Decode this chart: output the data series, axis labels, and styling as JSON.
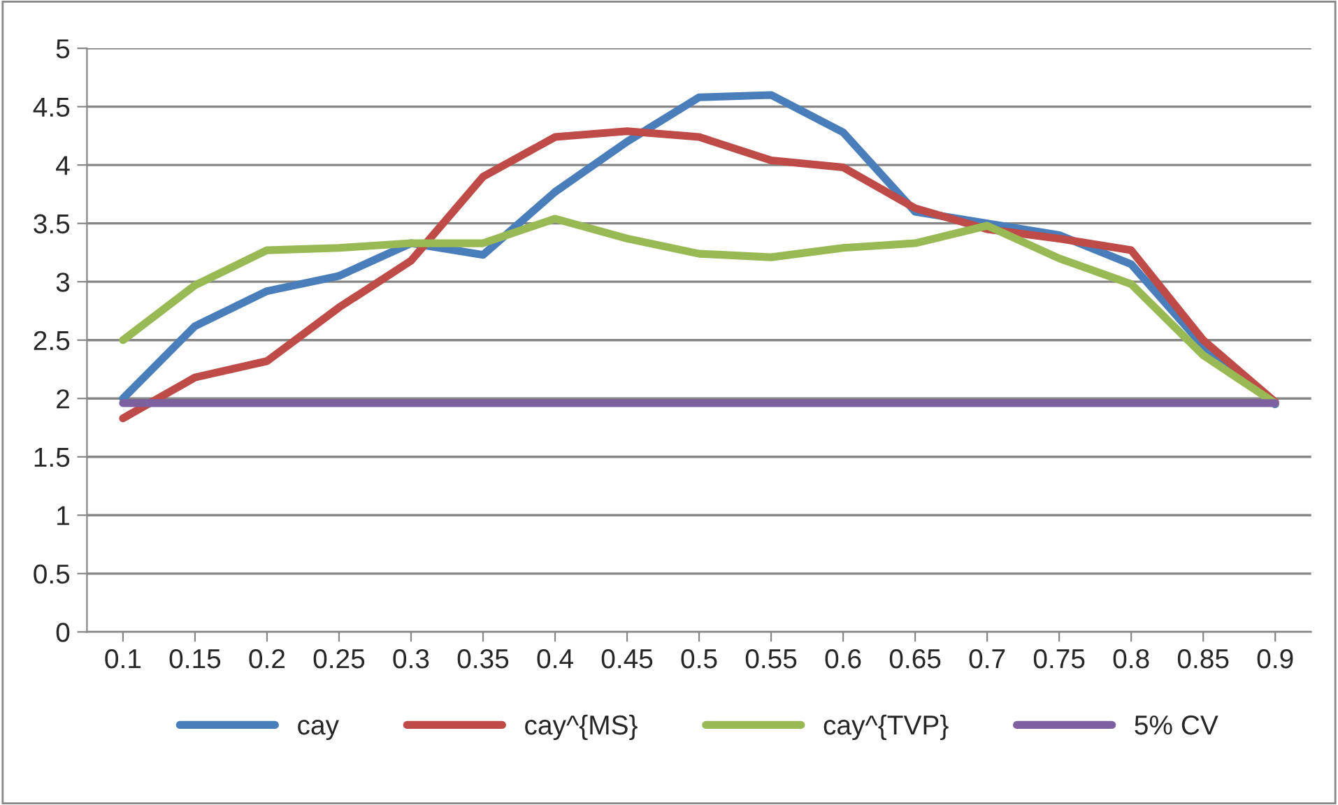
{
  "chart_data": {
    "type": "line",
    "categories": [
      "0.1",
      "0.15",
      "0.2",
      "0.25",
      "0.3",
      "0.35",
      "0.4",
      "0.45",
      "0.5",
      "0.55",
      "0.6",
      "0.65",
      "0.7",
      "0.75",
      "0.8",
      "0.85",
      "0.9"
    ],
    "series": [
      {
        "name": "cay",
        "color": "#4a7ebb",
        "values": [
          2.0,
          2.62,
          2.92,
          3.05,
          3.33,
          3.23,
          3.77,
          4.2,
          4.58,
          4.6,
          4.28,
          3.6,
          3.5,
          3.4,
          3.15,
          2.45,
          1.95
        ]
      },
      {
        "name": "cay^{MS}",
        "color": "#be4b48",
        "values": [
          1.83,
          2.18,
          2.32,
          2.78,
          3.18,
          3.9,
          4.24,
          4.29,
          4.24,
          4.04,
          3.98,
          3.63,
          3.45,
          3.37,
          3.27,
          2.5,
          1.97
        ]
      },
      {
        "name": "cay^{TVP}",
        "color": "#98b954",
        "values": [
          2.5,
          2.97,
          3.27,
          3.29,
          3.33,
          3.33,
          3.54,
          3.37,
          3.24,
          3.21,
          3.29,
          3.33,
          3.48,
          3.2,
          2.98,
          2.37,
          1.96
        ]
      },
      {
        "name": "5% CV",
        "color": "#7d60a0",
        "values": [
          1.96,
          1.96,
          1.96,
          1.96,
          1.96,
          1.96,
          1.96,
          1.96,
          1.96,
          1.96,
          1.96,
          1.96,
          1.96,
          1.96,
          1.96,
          1.96,
          1.96
        ]
      }
    ],
    "ylim": [
      0,
      5
    ],
    "yticks": [
      0,
      0.5,
      1,
      1.5,
      2,
      2.5,
      3,
      3.5,
      4,
      4.5,
      5
    ],
    "grid": "y",
    "legend": "bottom",
    "marker": "none",
    "line_style": "solid"
  }
}
